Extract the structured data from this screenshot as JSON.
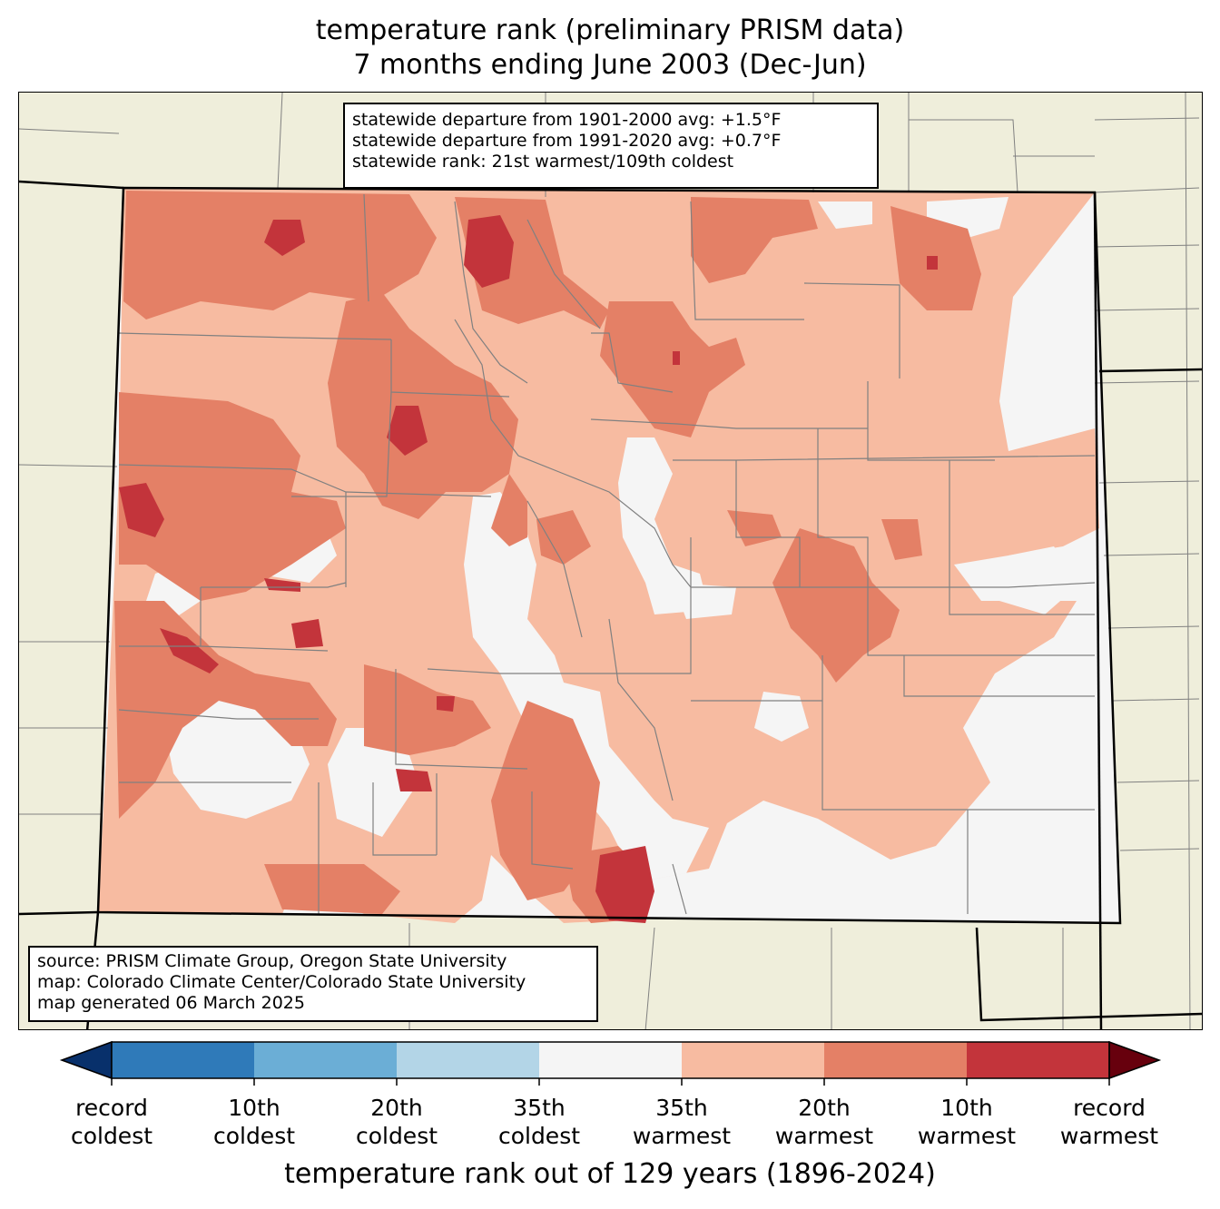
{
  "title": {
    "line1": "temperature rank (preliminary PRISM data)",
    "line2": "7 months ending June 2003 (Dec-Jun)"
  },
  "stats": {
    "line1": "statewide departure from 1901-2000 avg: +1.5°F",
    "line2": "statewide departure from 1991-2020 avg: +0.7°F",
    "line3": "statewide rank: 21st warmest/109th coldest"
  },
  "source": {
    "line1": "source: PRISM Climate Group, Oregon State University",
    "line2": "map: Colorado Climate Center/Colorado State University",
    "line3": "map generated 06 March 2025"
  },
  "colorbar": {
    "title": "temperature rank out of 129 years (1896-2024)",
    "colors": [
      "#08306b",
      "#2f7ab9",
      "#6baed6",
      "#b3d5e7",
      "#f5f5f5",
      "#f7bba1",
      "#e48066",
      "#c3343b",
      "#67000d"
    ],
    "ticks": [
      {
        "top": "record",
        "bottom": "coldest"
      },
      {
        "top": "10th",
        "bottom": "coldest"
      },
      {
        "top": "20th",
        "bottom": "coldest"
      },
      {
        "top": "35th",
        "bottom": "coldest"
      },
      {
        "top": "35th",
        "bottom": "warmest"
      },
      {
        "top": "20th",
        "bottom": "warmest"
      },
      {
        "top": "10th",
        "bottom": "warmest"
      },
      {
        "top": "record",
        "bottom": "warmest"
      }
    ]
  },
  "map_colors": {
    "background": "#efeedb",
    "near_normal": "#f5f5f5",
    "warm_35": "#f7bba1",
    "warm_20": "#e48066",
    "warm_10": "#c3343b",
    "county_lines": "#808080",
    "state_lines": "#000000"
  }
}
